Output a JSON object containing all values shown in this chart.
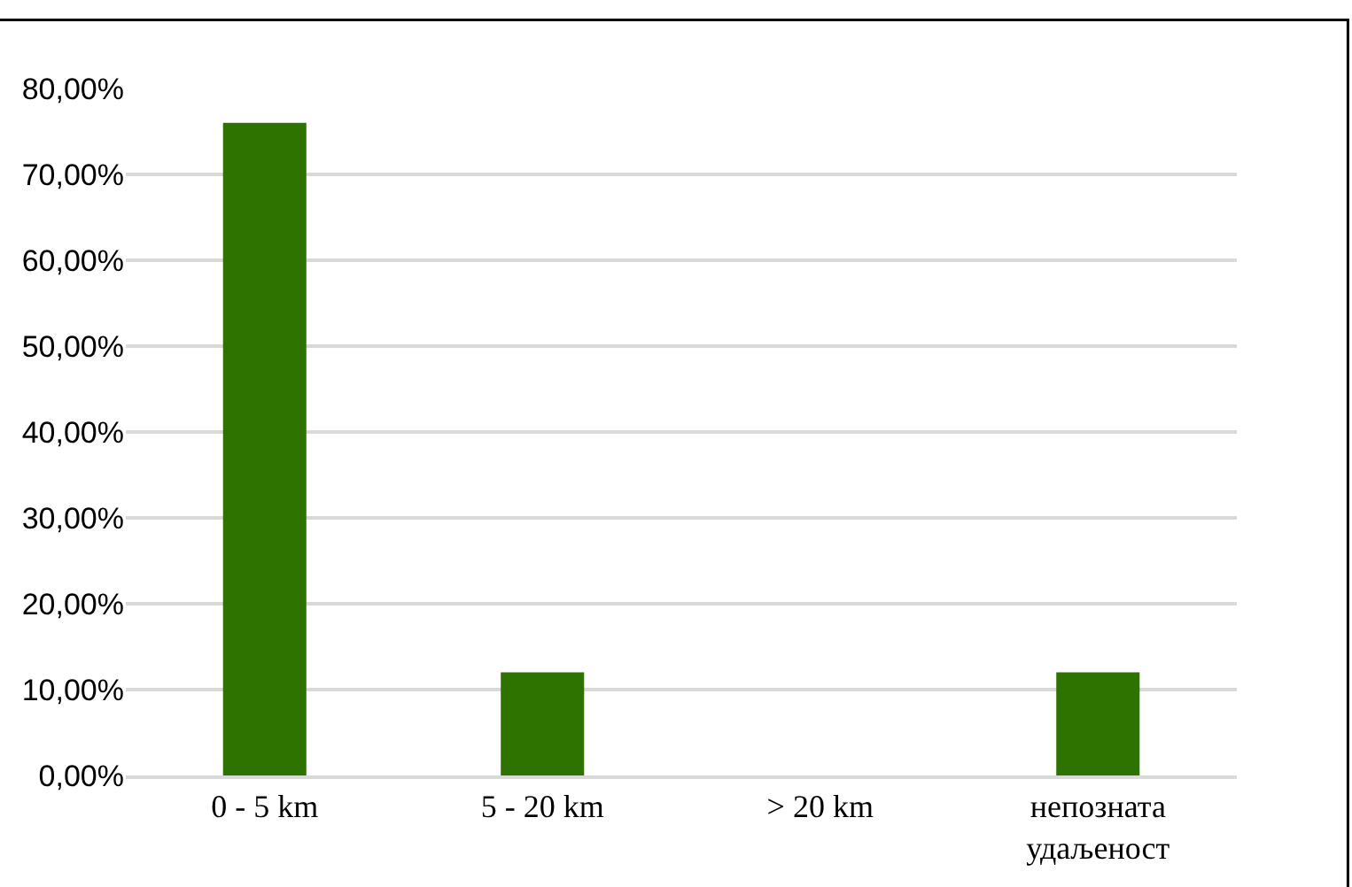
{
  "chart_data": {
    "type": "bar",
    "categories": [
      "0 - 5 km",
      "5 - 20 km",
      "> 20 km",
      "непозната\nудаљеност"
    ],
    "values": [
      76,
      12,
      0,
      12
    ],
    "color": "#2e7300",
    "ylim": [
      0,
      80
    ],
    "yticks": [
      {
        "value": 0,
        "label": "0,00%"
      },
      {
        "value": 10,
        "label": "10,00%"
      },
      {
        "value": 20,
        "label": "20,00%"
      },
      {
        "value": 30,
        "label": "30,00%"
      },
      {
        "value": 40,
        "label": "40,00%"
      },
      {
        "value": 50,
        "label": "50,00%"
      },
      {
        "value": 60,
        "label": "60,00%"
      },
      {
        "value": 70,
        "label": "70,00%"
      },
      {
        "value": 80,
        "label": "80,00%"
      }
    ],
    "grid": "y",
    "legend": false
  }
}
